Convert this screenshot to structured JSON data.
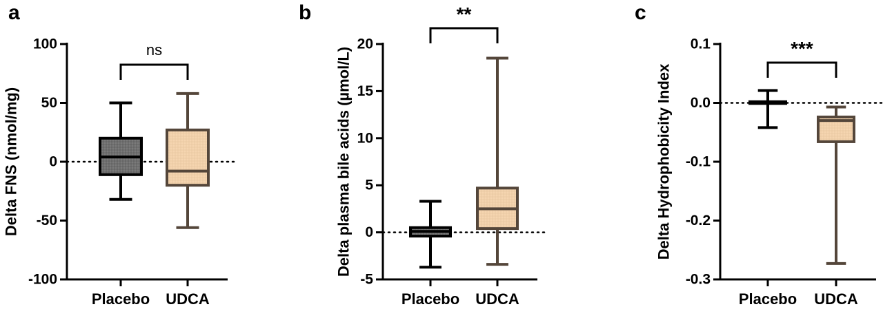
{
  "colors": {
    "axis": "#000000",
    "placebo_fill": "#7a7a7a",
    "placebo_stroke": "#000000",
    "udca_fill": "#f5d5b0",
    "udca_stroke": "#54463a"
  },
  "chart_data": [
    {
      "type": "box",
      "panel_letter": "a",
      "ylabel": "Delta FNS (nmol/mg)",
      "ylim": [
        -100,
        100
      ],
      "yticks": [
        100,
        50,
        0,
        -50,
        -100
      ],
      "ytick_labels": [
        "100",
        "50",
        "0",
        "-50",
        "-100"
      ],
      "categories": [
        "Placebo",
        "UDCA"
      ],
      "zero_line": true,
      "boxes": [
        {
          "name": "Placebo",
          "min": -32,
          "q1": -11,
          "median": 4,
          "q3": 20,
          "max": 50
        },
        {
          "name": "UDCA",
          "min": -56,
          "q1": -20,
          "median": -8,
          "q3": 27,
          "max": 58
        }
      ],
      "significance": "ns"
    },
    {
      "type": "box",
      "panel_letter": "b",
      "ylabel": "Delta plasma bile acids (µmol/L)",
      "ylim": [
        -5,
        20
      ],
      "yticks": [
        20,
        15,
        10,
        5,
        0,
        -5
      ],
      "ytick_labels": [
        "20",
        "15",
        "10",
        "5",
        "0",
        "-5"
      ],
      "categories": [
        "Placebo",
        "UDCA"
      ],
      "zero_line": true,
      "boxes": [
        {
          "name": "Placebo",
          "min": -3.7,
          "q1": -0.4,
          "median": 0.1,
          "q3": 0.5,
          "max": 3.3
        },
        {
          "name": "UDCA",
          "min": -3.4,
          "q1": 0.4,
          "median": 2.5,
          "q3": 4.7,
          "max": 18.5
        }
      ],
      "significance": "**"
    },
    {
      "type": "box",
      "panel_letter": "c",
      "ylabel": "Delta Hydrophobicity Index",
      "ylim": [
        -0.3,
        0.1
      ],
      "yticks": [
        0.1,
        0.0,
        -0.1,
        -0.2,
        -0.3
      ],
      "ytick_labels": [
        "0.1",
        "0.0",
        "-0.1",
        "-0.2",
        "-0.3"
      ],
      "categories": [
        "Placebo",
        "UDCA"
      ],
      "zero_line": true,
      "boxes": [
        {
          "name": "Placebo",
          "min": -0.042,
          "q1": -0.001,
          "median": 0.001,
          "q3": 0.002,
          "max": 0.021
        },
        {
          "name": "UDCA",
          "min": -0.273,
          "q1": -0.066,
          "median": -0.03,
          "q3": -0.024,
          "max": -0.007
        }
      ],
      "significance": "***"
    }
  ]
}
